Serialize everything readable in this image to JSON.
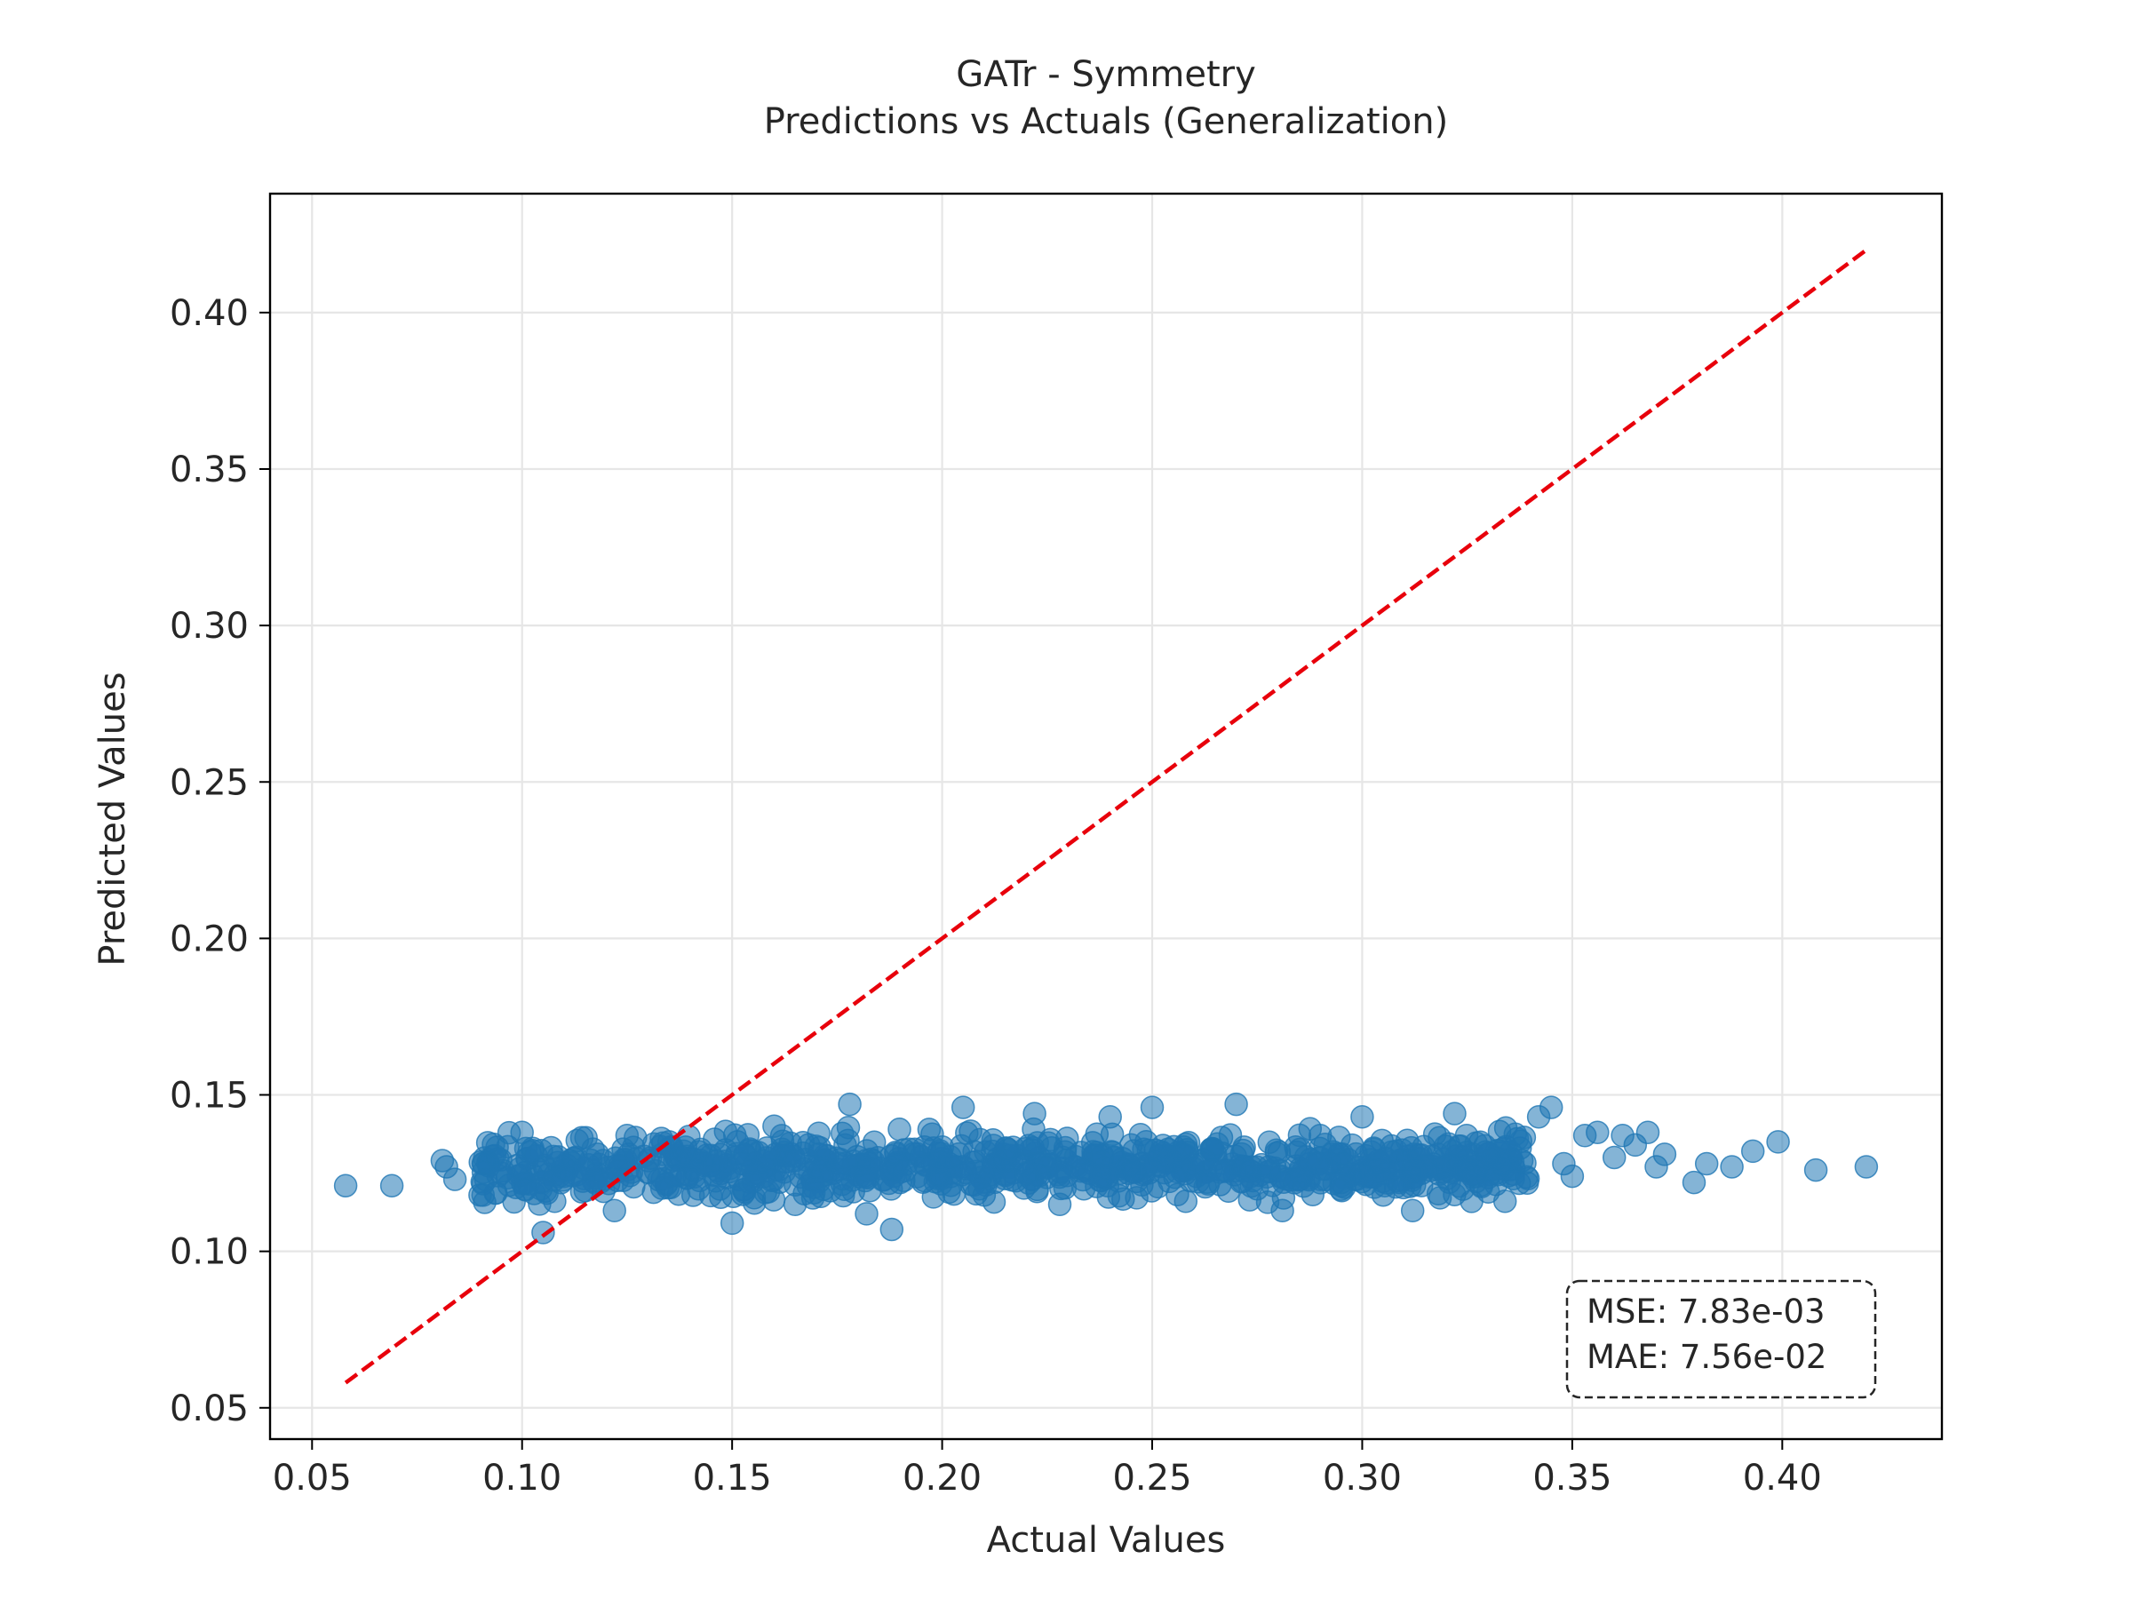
{
  "chart_data": {
    "type": "scatter",
    "title": "GATr - Symmetry",
    "subtitle": "Predictions vs Actuals (Generalization)",
    "xlabel": "Actual Values",
    "ylabel": "Predicted Values",
    "xlim": [
      0.04,
      0.438
    ],
    "ylim": [
      0.04,
      0.438
    ],
    "x_ticks": [
      0.05,
      0.1,
      0.15,
      0.2,
      0.25,
      0.3,
      0.35,
      0.4
    ],
    "x_tick_labels": [
      "0.05",
      "0.10",
      "0.15",
      "0.20",
      "0.25",
      "0.30",
      "0.35",
      "0.40"
    ],
    "y_ticks": [
      0.05,
      0.1,
      0.15,
      0.2,
      0.25,
      0.3,
      0.35,
      0.4
    ],
    "y_tick_labels": [
      "0.05",
      "0.10",
      "0.15",
      "0.20",
      "0.25",
      "0.30",
      "0.35",
      "0.40"
    ],
    "grid": true,
    "point_color": "#1f77b4",
    "point_alpha": 0.55,
    "reference_line": {
      "label": "y = x",
      "x": [
        0.058,
        0.42
      ],
      "y": [
        0.058,
        0.42
      ],
      "color": "#e8000b",
      "style": "dashed"
    },
    "annotation": {
      "lines": [
        "MSE: 7.83e-03",
        "MAE: 7.56e-02"
      ],
      "placement": "bottom-right"
    },
    "series": [
      {
        "name": "predictions",
        "x": [
          0.058,
          0.069,
          0.081,
          0.082,
          0.084,
          0.09,
          0.092,
          0.095,
          0.1,
          0.105,
          0.11,
          0.118,
          0.122,
          0.125,
          0.13,
          0.135,
          0.142,
          0.15,
          0.153,
          0.16,
          0.165,
          0.17,
          0.178,
          0.182,
          0.188,
          0.19,
          0.198,
          0.205,
          0.21,
          0.215,
          0.222,
          0.228,
          0.235,
          0.24,
          0.245,
          0.25,
          0.258,
          0.262,
          0.27,
          0.275,
          0.281,
          0.29,
          0.295,
          0.3,
          0.305,
          0.312,
          0.318,
          0.322,
          0.325,
          0.33,
          0.334,
          0.338,
          0.342,
          0.345,
          0.348,
          0.35,
          0.353,
          0.356,
          0.36,
          0.362,
          0.365,
          0.368,
          0.37,
          0.372,
          0.379,
          0.382,
          0.388,
          0.393,
          0.399,
          0.408,
          0.42
        ],
        "y": [
          0.121,
          0.121,
          0.129,
          0.127,
          0.123,
          0.118,
          0.128,
          0.125,
          0.138,
          0.106,
          0.124,
          0.131,
          0.113,
          0.137,
          0.129,
          0.135,
          0.12,
          0.109,
          0.131,
          0.14,
          0.115,
          0.127,
          0.147,
          0.112,
          0.107,
          0.122,
          0.133,
          0.146,
          0.118,
          0.129,
          0.144,
          0.115,
          0.125,
          0.143,
          0.134,
          0.146,
          0.116,
          0.128,
          0.147,
          0.12,
          0.113,
          0.137,
          0.122,
          0.143,
          0.118,
          0.113,
          0.131,
          0.144,
          0.126,
          0.119,
          0.116,
          0.129,
          0.143,
          0.146,
          0.128,
          0.124,
          0.137,
          0.138,
          0.13,
          0.137,
          0.134,
          0.138,
          0.127,
          0.131,
          0.122,
          0.128,
          0.127,
          0.132,
          0.135,
          0.126,
          0.127
        ]
      }
    ],
    "dense_cluster": {
      "x_range": [
        0.09,
        0.34
      ],
      "y_center": 0.127,
      "y_spread": 0.008
    }
  }
}
